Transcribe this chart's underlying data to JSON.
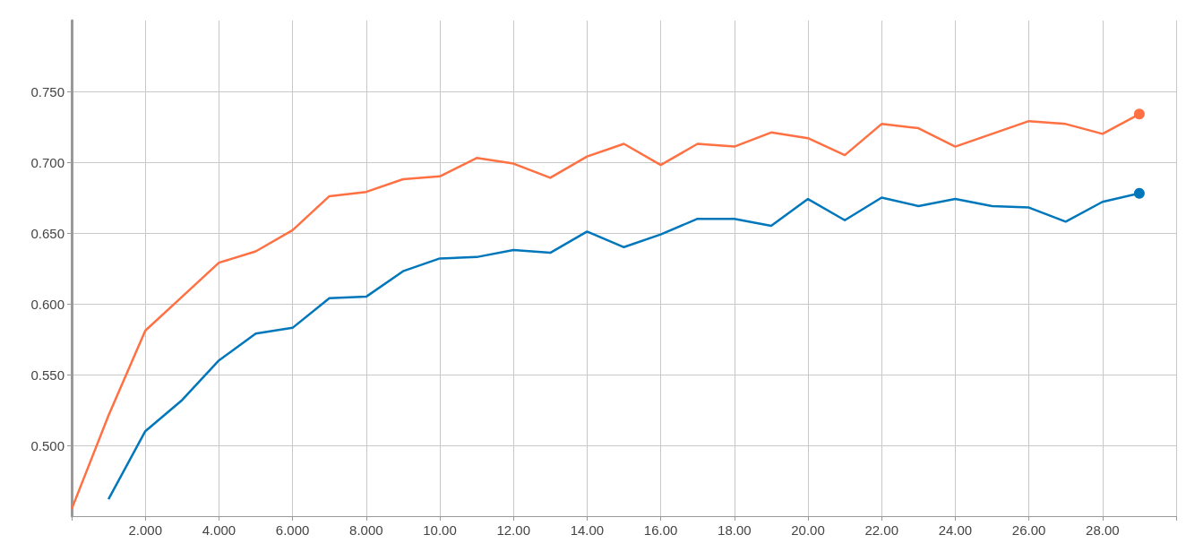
{
  "chart_data": {
    "type": "line",
    "x": [
      0,
      1,
      2,
      3,
      4,
      5,
      6,
      7,
      8,
      9,
      10,
      11,
      12,
      13,
      14,
      15,
      16,
      17,
      18,
      19,
      20,
      21,
      22,
      23,
      24,
      25,
      26,
      27,
      28,
      29
    ],
    "series": [
      {
        "color": "#ff7043",
        "values": [
          0.455,
          0.521,
          0.581,
          0.605,
          0.629,
          0.637,
          0.652,
          0.676,
          0.679,
          0.688,
          0.69,
          0.703,
          0.699,
          0.689,
          0.704,
          0.713,
          0.698,
          0.713,
          0.711,
          0.721,
          0.717,
          0.705,
          0.727,
          0.724,
          0.711,
          0.72,
          0.729,
          0.727,
          0.72,
          0.734
        ]
      },
      {
        "color": "#0077bb",
        "values": [
          null,
          0.462,
          0.51,
          0.532,
          0.56,
          0.579,
          0.583,
          0.604,
          0.605,
          0.623,
          0.632,
          0.633,
          0.638,
          0.636,
          0.651,
          0.64,
          0.649,
          0.66,
          0.66,
          0.655,
          0.674,
          0.659,
          0.675,
          0.669,
          0.674,
          0.669,
          0.668,
          0.658,
          0.672,
          0.678
        ]
      }
    ],
    "xlim": [
      0,
      30
    ],
    "xticks": [
      {
        "value": 0,
        "label": null
      },
      {
        "value": 2,
        "label": "2.000"
      },
      {
        "value": 4,
        "label": "4.000"
      },
      {
        "value": 6,
        "label": "6.000"
      },
      {
        "value": 8,
        "label": "8.000"
      },
      {
        "value": 10,
        "label": "10.00"
      },
      {
        "value": 12,
        "label": "12.00"
      },
      {
        "value": 14,
        "label": "14.00"
      },
      {
        "value": 16,
        "label": "16.00"
      },
      {
        "value": 18,
        "label": "18.00"
      },
      {
        "value": 20,
        "label": "20.00"
      },
      {
        "value": 22,
        "label": "22.00"
      },
      {
        "value": 24,
        "label": "24.00"
      },
      {
        "value": 26,
        "label": "26.00"
      },
      {
        "value": 28,
        "label": "28.00"
      },
      {
        "value": 30,
        "label": null
      }
    ],
    "ylim": [
      0.45,
      0.8
    ],
    "yticks": [
      {
        "value": 0.5,
        "label": "0.500"
      },
      {
        "value": 0.55,
        "label": "0.550"
      },
      {
        "value": 0.6,
        "label": "0.600"
      },
      {
        "value": 0.65,
        "label": "0.650"
      },
      {
        "value": 0.7,
        "label": "0.700"
      },
      {
        "value": 0.75,
        "label": "0.750"
      }
    ],
    "grid": true,
    "line_style": "solid"
  }
}
